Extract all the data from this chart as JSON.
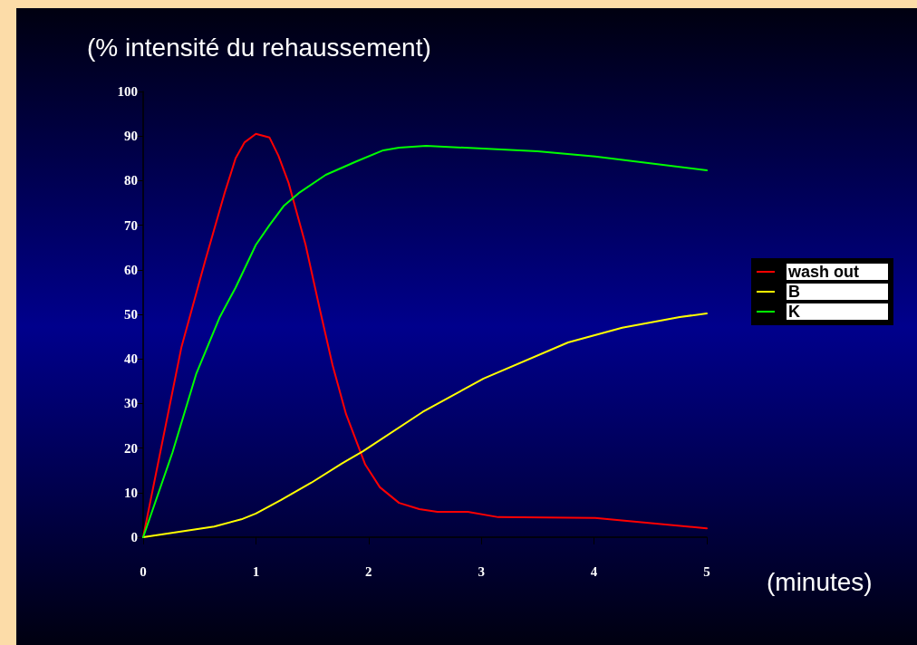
{
  "chart_data": {
    "type": "line",
    "xlabel": "(minutes)",
    "ylabel": "(% intensité du rehaussement)",
    "xlim": [
      0,
      5
    ],
    "xticks": [
      0,
      1,
      2,
      3,
      4,
      5
    ],
    "ylim": [
      0,
      100
    ],
    "yticks": [
      0,
      10,
      20,
      30,
      40,
      50,
      60,
      70,
      80,
      90,
      100
    ],
    "grid": false,
    "legend": "right",
    "marker": "none",
    "line_style": "solid",
    "series": [
      {
        "name": "wash out",
        "color": "#ff0000",
        "x": [
          0,
          0.34,
          0.55,
          0.72,
          0.82,
          0.9,
          1,
          1.12,
          1.2,
          1.29,
          1.44,
          1.57,
          1.68,
          1.8,
          1.97,
          2.1,
          2.27,
          2.45,
          2.61,
          2.88,
          3.15,
          4.01,
          5
        ],
        "values": [
          0,
          42.7,
          62,
          77,
          85,
          88.6,
          90.5,
          89.7,
          85.6,
          79.5,
          65.7,
          50.8,
          38.6,
          27.6,
          16.3,
          11.2,
          7.7,
          6.3,
          5.7,
          5.7,
          4.5,
          4.3,
          2
        ]
      },
      {
        "name": "B",
        "color": "#ffff00",
        "x": [
          0,
          0.63,
          0.87,
          1,
          1.22,
          1.49,
          1.76,
          1.95,
          2.48,
          3.02,
          3.77,
          4.25,
          4.76,
          5
        ],
        "values": [
          0,
          2.4,
          4,
          5.3,
          8.3,
          12.2,
          16.5,
          19.3,
          28.1,
          35.6,
          43.7,
          47,
          49.4,
          50.2
        ]
      },
      {
        "name": "K",
        "color": "#00ff00",
        "x": [
          0,
          0.26,
          0.47,
          0.68,
          0.82,
          1,
          1.12,
          1.25,
          1.38,
          1.62,
          1.89,
          2.13,
          2.27,
          2.51,
          3.5,
          4.01,
          5
        ],
        "values": [
          0,
          19,
          36.6,
          49.4,
          56,
          65.6,
          70,
          74.4,
          77.2,
          81.3,
          84.3,
          86.8,
          87.4,
          87.8,
          86.6,
          85.4,
          82.3
        ]
      }
    ]
  }
}
